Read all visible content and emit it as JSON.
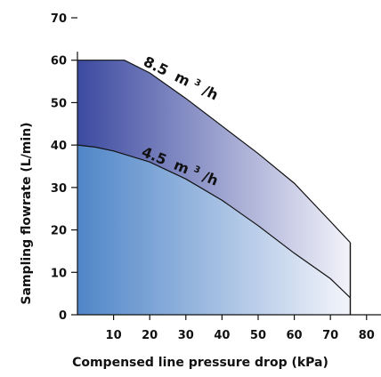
{
  "chart_data": {
    "type": "area",
    "title": "",
    "xlabel": "Compensed line pressure drop (kPa)",
    "ylabel": "Sampling flowrate  (L/min)",
    "xlim": [
      0,
      84
    ],
    "ylim": [
      0,
      70
    ],
    "x_ticks": [
      "10",
      "20",
      "30",
      "40",
      "50",
      "60",
      "70",
      "80"
    ],
    "x_tick_values": [
      10,
      20,
      30,
      40,
      50,
      60,
      70,
      80
    ],
    "y_ticks": [
      "0",
      "10",
      "20",
      "30",
      "40",
      "50",
      "60",
      "70"
    ],
    "y_tick_values": [
      0,
      10,
      20,
      30,
      40,
      50,
      60,
      70
    ],
    "grid": false,
    "series": [
      {
        "name": "8.5 m³/h",
        "x": [
          0,
          13,
          20,
          30,
          40,
          50,
          60,
          70,
          75.5
        ],
        "y": [
          60,
          60,
          57,
          51,
          44.5,
          38,
          31,
          22,
          17
        ],
        "cutoff_x": 75.5,
        "fill_colors": [
          "#3c4aa0",
          "#f3f3fa"
        ]
      },
      {
        "name": "4.5 m³/h",
        "x": [
          0,
          5,
          10,
          20,
          30,
          40,
          50,
          60,
          70,
          75.5
        ],
        "y": [
          40,
          39.5,
          38.6,
          36,
          32,
          27,
          21,
          14.5,
          8.5,
          4
        ],
        "cutoff_x": 75.5,
        "fill_colors": [
          "#4f86c8",
          "#f4f5fb"
        ]
      }
    ],
    "curve_labels": {
      "upper": {
        "value": "8.5",
        "unit_base": "m",
        "unit_sup": "3",
        "unit_tail": "/h"
      },
      "lower": {
        "value": "4.5",
        "unit_base": "m",
        "unit_sup": "3",
        "unit_tail": "/h"
      }
    },
    "colors": {
      "axis": "#111111",
      "curve": "#111111"
    }
  }
}
